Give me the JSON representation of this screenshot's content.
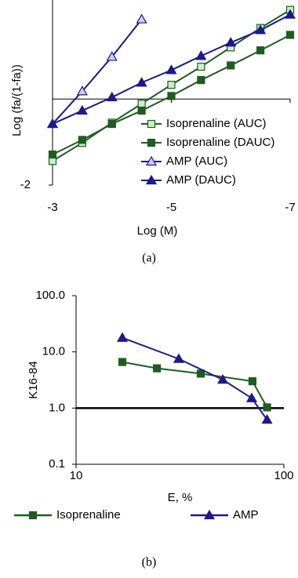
{
  "chart_data": [
    {
      "type": "line",
      "caption": "(a)",
      "xlabel": "Log (M)",
      "ylabel": "Log (fa/(1-fa))",
      "x": [
        -3,
        -3.5,
        -4,
        -4.5,
        -5,
        -5.5,
        -6,
        -6.5,
        -7
      ],
      "xlim": [
        -3,
        -7
      ],
      "xticks": [
        -3,
        -5,
        -7
      ],
      "ylim": [
        -2,
        2.3
      ],
      "yticks": [
        -2
      ],
      "legend": "lower right",
      "series": [
        {
          "name": "Isoprenaline (AUC)",
          "color": "#1f5c1f",
          "marker": "square",
          "marker_fill": "#c8f0c8",
          "values": [
            -1.44,
            -1.02,
            -0.55,
            -0.11,
            0.33,
            0.75,
            1.2,
            1.65,
            2.07
          ]
        },
        {
          "name": "Isoprenaline (DAUC)",
          "color": "#1f5c1f",
          "marker": "square",
          "marker_fill": "#1f5c1f",
          "values": [
            -1.29,
            -0.95,
            -0.58,
            -0.27,
            0.07,
            0.44,
            0.78,
            1.13,
            1.49
          ]
        },
        {
          "name": "AMP (AUC)",
          "color": "#1a1a8c",
          "marker": "triangle",
          "marker_fill": "#c8d0f0",
          "values": [
            -0.58,
            0.18,
            0.98,
            1.85,
            null,
            null,
            null,
            null,
            null
          ]
        },
        {
          "name": "AMP (DAUC)",
          "color": "#1a1a8c",
          "marker": "triangle",
          "marker_fill": "#1a1a8c",
          "values": [
            -0.58,
            -0.27,
            0.04,
            0.38,
            0.67,
            1.0,
            1.31,
            1.6,
            1.96
          ]
        }
      ]
    },
    {
      "type": "line",
      "caption": "(b)",
      "xlabel": "E, %",
      "ylabel": "K16-84",
      "xlog": true,
      "ylog": true,
      "xlim": [
        10,
        100
      ],
      "xticks": [
        10,
        100
      ],
      "ylim": [
        0.1,
        100
      ],
      "yticks": [
        {
          "value": 100,
          "label": "100.0"
        },
        {
          "value": 10,
          "label": "10.0"
        },
        {
          "value": 1,
          "label": "1.0"
        },
        0.1
      ],
      "hline": 1,
      "legend": "bottom",
      "series": [
        {
          "name": "Isoprenaline",
          "color": "#1f5c1f",
          "marker": "square",
          "marker_fill": "#1f5c1f",
          "x": [
            16.7,
            24.5,
            39.8,
            70.6,
            83
          ],
          "values": [
            6.6,
            5.1,
            4.1,
            3.0,
            1.03
          ]
        },
        {
          "name": "AMP",
          "color": "#1a1a8c",
          "marker": "triangle",
          "marker_fill": "#1a1a8c",
          "x": [
            16.7,
            31.2,
            50.8,
            70,
            83
          ],
          "values": [
            17.8,
            7.5,
            3.2,
            1.5,
            0.62
          ]
        }
      ]
    }
  ]
}
